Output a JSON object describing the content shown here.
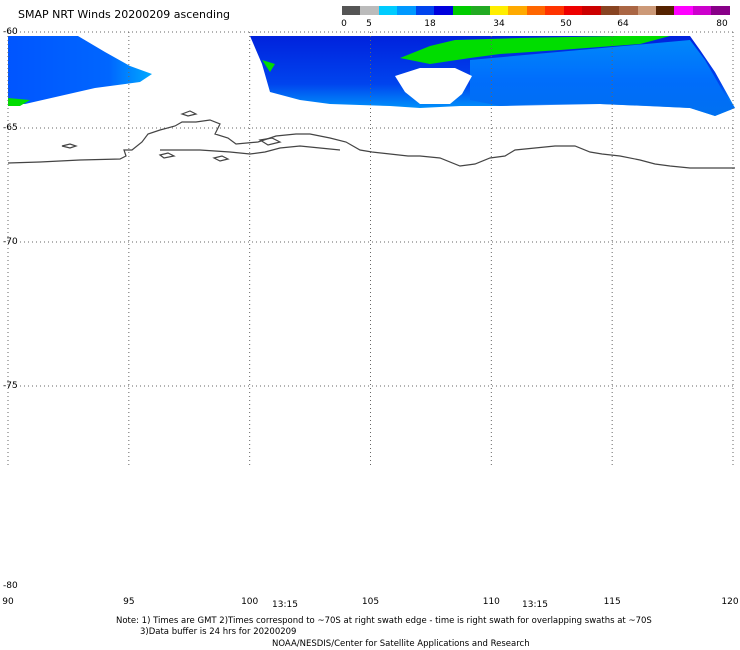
{
  "title": "SMAP NRT Winds 20200209 ascending",
  "colorbar": {
    "labels": [
      "0",
      "5",
      "18",
      "34",
      "50",
      "64",
      "80"
    ],
    "segments": [
      "#555555",
      "#bbbbbb",
      "#00ccff",
      "#0099ff",
      "#0044ee",
      "#0000dd",
      "#00cc00",
      "#22aa22",
      "#ffee00",
      "#ffaa00",
      "#ff6600",
      "#ff3300",
      "#ee0000",
      "#cc0000",
      "#884422",
      "#aa6644",
      "#cc9977",
      "#552200",
      "#ff00ff",
      "#cc00cc",
      "#880088"
    ]
  },
  "map": {
    "lat_labels": [
      "-60",
      "-65",
      "-70",
      "-75",
      "-80"
    ],
    "lon_labels": [
      "90",
      "95",
      "100",
      "105",
      "110",
      "115",
      "120"
    ],
    "time_labels": [
      "13:15",
      "13:15"
    ],
    "lat_range": [
      -80,
      -60
    ],
    "lon_range": [
      90,
      120
    ],
    "grid": true,
    "wind_fill_colors": [
      "#0055ff",
      "#0033dd",
      "#00aaff",
      "#00dd00"
    ]
  },
  "notes": {
    "line1": "Note: 1) Times are GMT 2)Times correspond to ~70S at right swath edge - time is right swath for overlapping swaths at ~70S",
    "line2": "3)Data buffer is 24 hrs for 20200209",
    "line3": "NOAA/NESDIS/Center for Satellite Applications and Research"
  }
}
